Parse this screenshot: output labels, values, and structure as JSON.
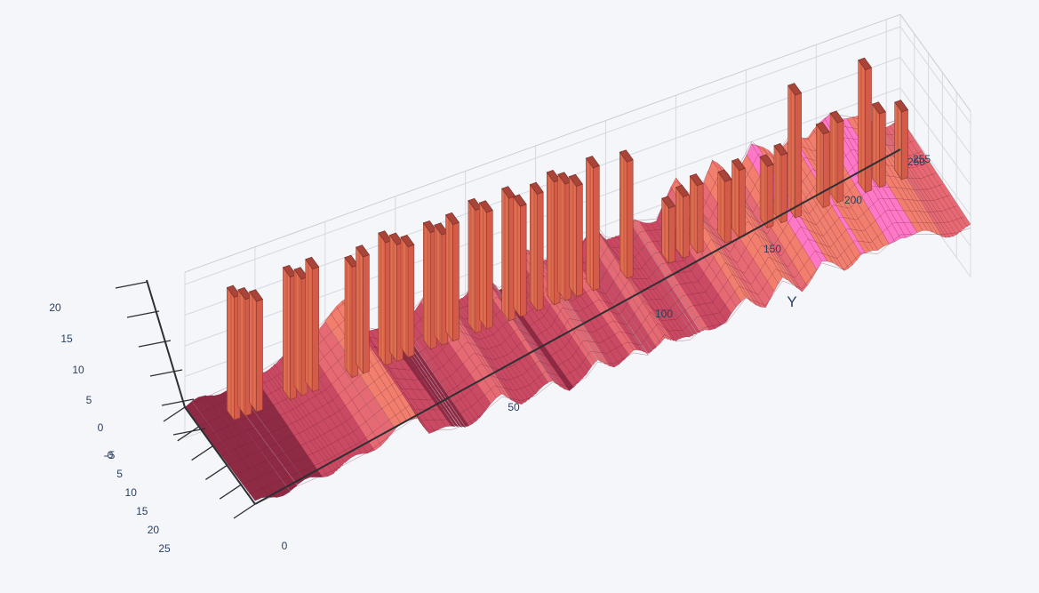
{
  "chart_data": {
    "type": "surface",
    "title": "",
    "axes": {
      "x": {
        "label": "",
        "range": [
          0,
          25
        ],
        "ticks": [
          "-0",
          "5",
          "10",
          "15",
          "20",
          "25"
        ]
      },
      "y": {
        "label": "Y",
        "range": [
          0,
          255
        ],
        "ticks": [
          "0",
          "50",
          "100",
          "150",
          "200",
          "250",
          "255"
        ]
      },
      "z": {
        "label": "",
        "range": [
          -5,
          22
        ],
        "ticks": [
          "-5",
          "0",
          "5",
          "10",
          "15",
          "20"
        ]
      }
    },
    "grid": true,
    "colorscale": [
      "#8e2a44",
      "#c94a62",
      "#e66a74",
      "#f27f6e",
      "#ff78c8"
    ],
    "background": "#f4f6fa",
    "surface_profile": {
      "y": [
        0,
        10,
        20,
        28,
        32,
        40,
        50,
        58,
        62,
        70,
        75,
        80,
        88,
        95,
        100,
        106,
        112,
        118,
        122,
        128,
        135,
        140,
        146,
        150,
        155,
        160,
        168,
        175,
        182,
        188,
        195,
        202,
        210,
        216,
        222,
        230,
        238,
        245,
        250,
        255
      ],
      "height": [
        0,
        0.5,
        1,
        1.5,
        2,
        3,
        6,
        8,
        3,
        1,
        1,
        2,
        5,
        2,
        2,
        4,
        1,
        2,
        5,
        3,
        4,
        2,
        6,
        3,
        2,
        4,
        3,
        8,
        4,
        9,
        5,
        10,
        6,
        9,
        7,
        10,
        8,
        6,
        5,
        5
      ],
      "ridge_y": [
        10,
        14,
        18,
        30,
        34,
        38,
        52,
        56,
        64,
        68,
        72,
        80,
        84,
        88,
        96,
        100,
        108,
        112,
        118,
        124,
        128,
        132,
        138,
        150,
        165,
        170,
        175,
        185,
        190,
        200,
        205,
        210,
        220,
        225,
        235,
        240,
        248
      ],
      "ridge_height": [
        21,
        20,
        19,
        21,
        20,
        21,
        19,
        20,
        21,
        20,
        19,
        20,
        19,
        20,
        21,
        20,
        21,
        19,
        20,
        21,
        20,
        19,
        21,
        20,
        10,
        11,
        12,
        11,
        12,
        11,
        12,
        21,
        13,
        14,
        21,
        13,
        12
      ]
    }
  }
}
